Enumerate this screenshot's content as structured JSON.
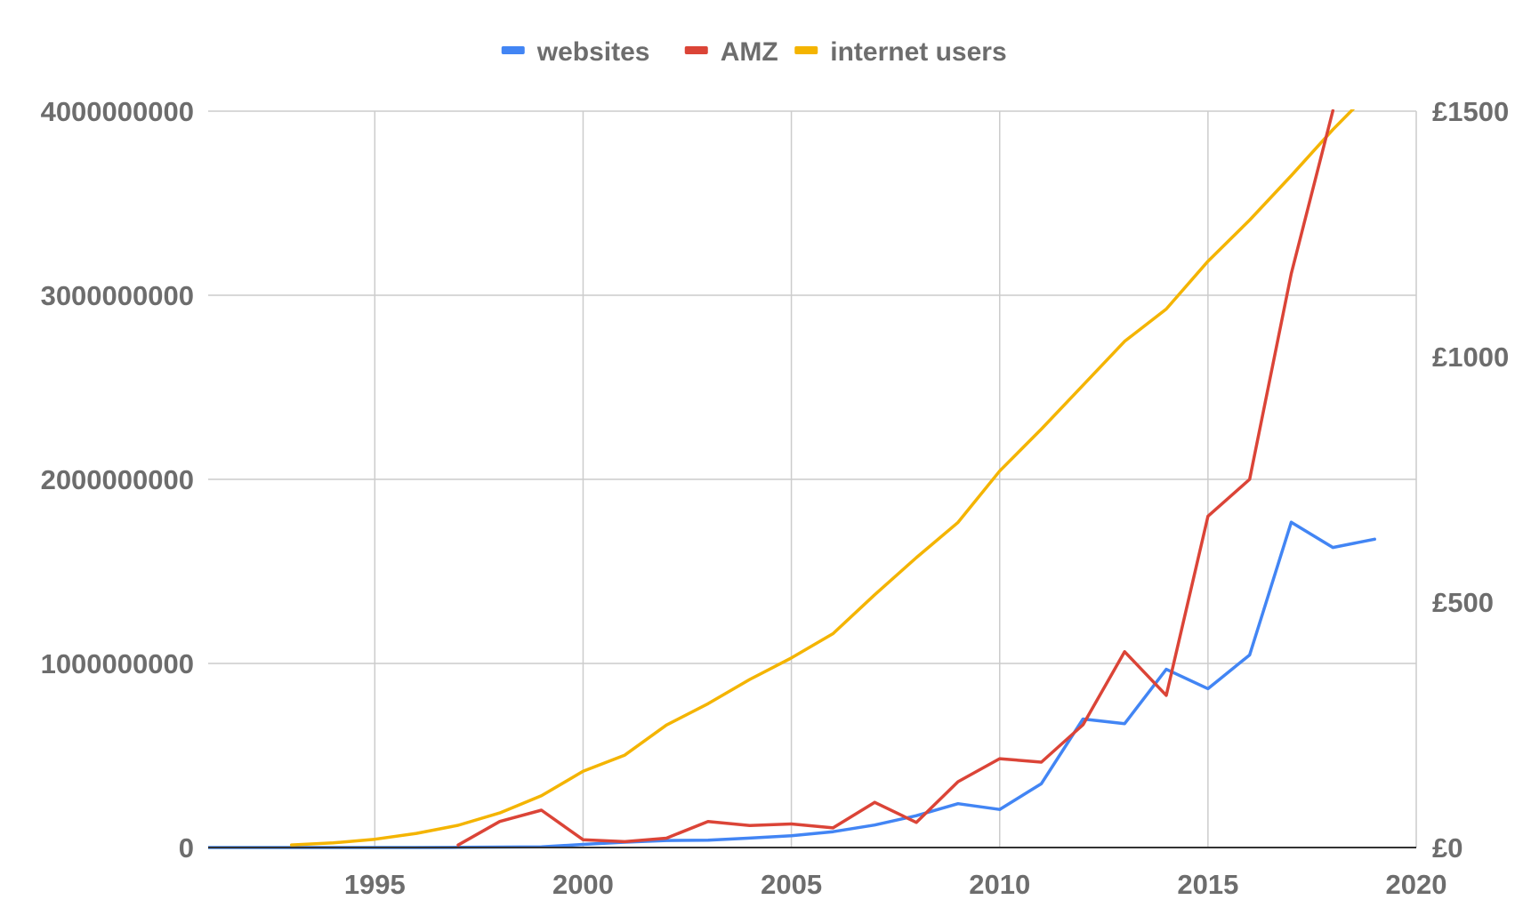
{
  "chart_data": {
    "type": "line",
    "title": "",
    "xlabel": "",
    "ylabel": "",
    "y2label": "",
    "legend_position": "top-center",
    "grid": true,
    "xlim": [
      1991,
      2020
    ],
    "ylim": [
      0,
      4000000000
    ],
    "y2lim": [
      0,
      1500
    ],
    "x_ticks": [
      "1995",
      "2000",
      "2005",
      "2010",
      "2015",
      "2020"
    ],
    "y_ticks": [
      "0",
      "1000000000",
      "2000000000",
      "3000000000",
      "4000000000"
    ],
    "y2_ticks": [
      "£0",
      "£500",
      "£1000",
      "£1500"
    ],
    "series": [
      {
        "name": "websites",
        "color": "#4285f4",
        "axis": "left",
        "points": [
          [
            1991,
            0
          ],
          [
            1992,
            0
          ],
          [
            1993,
            0
          ],
          [
            1994,
            0
          ],
          [
            1995,
            0
          ],
          [
            1996,
            0
          ],
          [
            1997,
            1000000
          ],
          [
            1998,
            2400000
          ],
          [
            1999,
            3200000
          ],
          [
            2000,
            17000000
          ],
          [
            2001,
            29000000
          ],
          [
            2002,
            38000000
          ],
          [
            2003,
            40000000
          ],
          [
            2004,
            51000000
          ],
          [
            2005,
            64000000
          ],
          [
            2006,
            86000000
          ],
          [
            2007,
            122000000
          ],
          [
            2008,
            173000000
          ],
          [
            2009,
            238000000
          ],
          [
            2010,
            207000000
          ],
          [
            2011,
            347000000
          ],
          [
            2012,
            698000000
          ],
          [
            2013,
            673000000
          ],
          [
            2014,
            968000000
          ],
          [
            2015,
            863000000
          ],
          [
            2016,
            1046000000
          ],
          [
            2017,
            1767000000
          ],
          [
            2018,
            1630000000
          ],
          [
            2019,
            1675000000
          ]
        ]
      },
      {
        "name": "AMZ",
        "color": "#db4437",
        "axis": "right",
        "points": [
          [
            1997,
            5
          ],
          [
            1998,
            53
          ],
          [
            1999,
            76
          ],
          [
            2000,
            16
          ],
          [
            2001,
            12
          ],
          [
            2002,
            19
          ],
          [
            2003,
            53
          ],
          [
            2004,
            45
          ],
          [
            2005,
            48
          ],
          [
            2006,
            40
          ],
          [
            2007,
            92
          ],
          [
            2008,
            51
          ],
          [
            2009,
            134
          ],
          [
            2010,
            181
          ],
          [
            2011,
            174
          ],
          [
            2012,
            250
          ],
          [
            2013,
            399
          ],
          [
            2014,
            310
          ],
          [
            2015,
            675
          ],
          [
            2016,
            750
          ],
          [
            2017,
            1169
          ],
          [
            2018,
            1501
          ]
        ]
      },
      {
        "name": "internet users",
        "color": "#f4b400",
        "axis": "left",
        "points": [
          [
            1993,
            14000000
          ],
          [
            1994,
            25000000
          ],
          [
            1995,
            45000000
          ],
          [
            1996,
            77000000
          ],
          [
            1997,
            121000000
          ],
          [
            1998,
            188000000
          ],
          [
            1999,
            281000000
          ],
          [
            2000,
            414000000
          ],
          [
            2001,
            502000000
          ],
          [
            2002,
            665000000
          ],
          [
            2003,
            781000000
          ],
          [
            2004,
            913000000
          ],
          [
            2005,
            1030000000
          ],
          [
            2006,
            1162000000
          ],
          [
            2007,
            1373000000
          ],
          [
            2008,
            1575000000
          ],
          [
            2009,
            1766000000
          ],
          [
            2010,
            2045000000
          ],
          [
            2011,
            2273000000
          ],
          [
            2012,
            2511000000
          ],
          [
            2013,
            2750000000
          ],
          [
            2014,
            2925000000
          ],
          [
            2015,
            3185000000
          ],
          [
            2016,
            3408000000
          ],
          [
            2017,
            3650000000
          ],
          [
            2018,
            3900000000
          ],
          [
            2019,
            4130000000
          ]
        ]
      }
    ]
  }
}
